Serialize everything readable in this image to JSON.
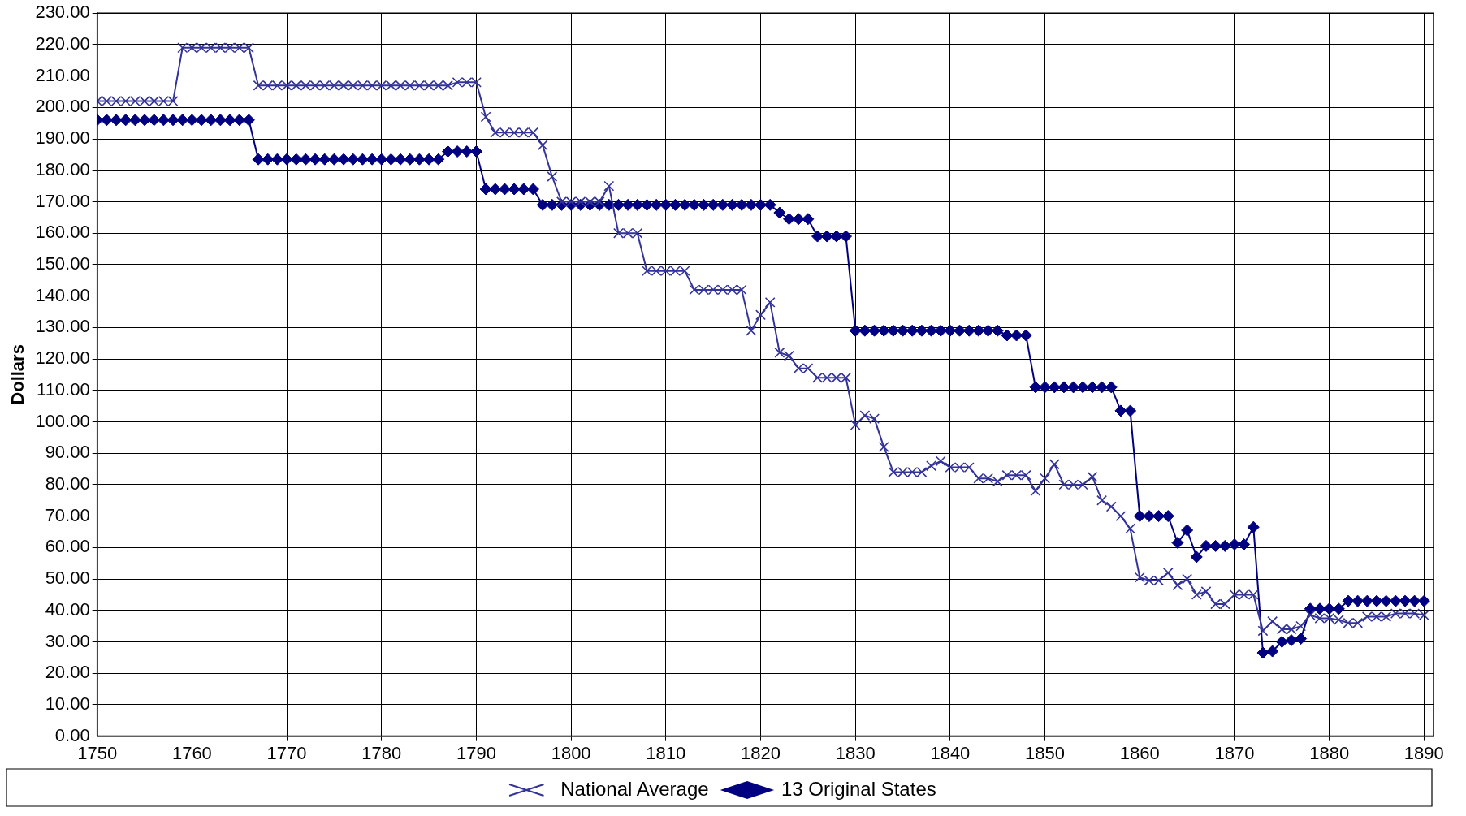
{
  "chart_data": {
    "type": "line",
    "ylabel": "Dollars",
    "x": [
      1750,
      1751,
      1752,
      1753,
      1754,
      1755,
      1756,
      1757,
      1758,
      1759,
      1760,
      1761,
      1762,
      1763,
      1764,
      1765,
      1766,
      1767,
      1768,
      1769,
      1770,
      1771,
      1772,
      1773,
      1774,
      1775,
      1776,
      1777,
      1778,
      1779,
      1780,
      1781,
      1782,
      1783,
      1784,
      1785,
      1786,
      1787,
      1788,
      1789,
      1790,
      1791,
      1792,
      1793,
      1794,
      1795,
      1796,
      1797,
      1798,
      1799,
      1800,
      1801,
      1802,
      1803,
      1804,
      1805,
      1806,
      1807,
      1808,
      1809,
      1810,
      1811,
      1812,
      1813,
      1814,
      1815,
      1816,
      1817,
      1818,
      1819,
      1820,
      1821,
      1822,
      1823,
      1824,
      1825,
      1826,
      1827,
      1828,
      1829,
      1830,
      1831,
      1832,
      1833,
      1834,
      1835,
      1836,
      1837,
      1838,
      1839,
      1840,
      1841,
      1842,
      1843,
      1844,
      1845,
      1846,
      1847,
      1848,
      1849,
      1850,
      1851,
      1852,
      1853,
      1854,
      1855,
      1856,
      1857,
      1858,
      1859,
      1860,
      1861,
      1862,
      1863,
      1864,
      1865,
      1866,
      1867,
      1868,
      1869,
      1870,
      1871,
      1872,
      1873,
      1874,
      1875,
      1876,
      1877,
      1878,
      1879,
      1880,
      1881,
      1882,
      1883,
      1884,
      1885,
      1886,
      1887,
      1888,
      1889,
      1890
    ],
    "series": [
      {
        "name": "National Average",
        "color": "#333399",
        "marker": "cross",
        "values": [
          202,
          202,
          202,
          202,
          202,
          202,
          202,
          202,
          202,
          219,
          219,
          219,
          219,
          219,
          219,
          219,
          219,
          207,
          207,
          207,
          207,
          207,
          207,
          207,
          207,
          207,
          207,
          207,
          207,
          207,
          207,
          207,
          207,
          207,
          207,
          207,
          207,
          207,
          208,
          208,
          208,
          197,
          192,
          192,
          192,
          192,
          192,
          188,
          178,
          170,
          170,
          170,
          170,
          170,
          175,
          160,
          160,
          160,
          148,
          148,
          148,
          148,
          148,
          142,
          142,
          142,
          142,
          142,
          142,
          129,
          134,
          138,
          122,
          121,
          117,
          117,
          114,
          114,
          114,
          114,
          99,
          102,
          101,
          92,
          84,
          84,
          84,
          84,
          86,
          87.5,
          85.5,
          85.5,
          85.5,
          82,
          82,
          81,
          83,
          83,
          83,
          78,
          82,
          86.5,
          80,
          80,
          80,
          82.5,
          75,
          73,
          70,
          66,
          50.5,
          49.5,
          49.5,
          52,
          48,
          50,
          45,
          46,
          42,
          42,
          45,
          45,
          45,
          33.5,
          36.5,
          34,
          34,
          35,
          38.5,
          37.5,
          37.5,
          37,
          36,
          36,
          38,
          38,
          38,
          39,
          39,
          39,
          38.5
        ]
      },
      {
        "name": "13 Original States",
        "color": "#000080",
        "marker": "diamond",
        "values": [
          196,
          196,
          196,
          196,
          196,
          196,
          196,
          196,
          196,
          196,
          196,
          196,
          196,
          196,
          196,
          196,
          196,
          183.5,
          183.5,
          183.5,
          183.5,
          183.5,
          183.5,
          183.5,
          183.5,
          183.5,
          183.5,
          183.5,
          183.5,
          183.5,
          183.5,
          183.5,
          183.5,
          183.5,
          183.5,
          183.5,
          183.5,
          186,
          186,
          186,
          186,
          174,
          174,
          174,
          174,
          174,
          174,
          169,
          169,
          169,
          169,
          169,
          169,
          169,
          169,
          169,
          169,
          169,
          169,
          169,
          169,
          169,
          169,
          169,
          169,
          169,
          169,
          169,
          169,
          169,
          169,
          169,
          166.5,
          164.5,
          164.5,
          164.5,
          159,
          159,
          159,
          159,
          129,
          129,
          129,
          129,
          129,
          129,
          129,
          129,
          129,
          129,
          129,
          129,
          129,
          129,
          129,
          129,
          127.5,
          127.5,
          127.5,
          111,
          111,
          111,
          111,
          111,
          111,
          111,
          111,
          111,
          103.5,
          103.5,
          70,
          70,
          70,
          70,
          61.5,
          65.5,
          57,
          60.5,
          60.5,
          60.5,
          61,
          61,
          66.5,
          26.5,
          27,
          30,
          30.5,
          31,
          40.5,
          40.5,
          40.5,
          40.5,
          43,
          43,
          43,
          43,
          43,
          43,
          43,
          43,
          43
        ]
      }
    ],
    "xlim": [
      1750,
      1891
    ],
    "xticks": [
      1750,
      1760,
      1770,
      1780,
      1790,
      1800,
      1810,
      1820,
      1830,
      1840,
      1850,
      1860,
      1870,
      1880,
      1890
    ],
    "ylim": [
      0,
      230
    ],
    "yticks": [
      {
        "value": 0,
        "label": "0.00"
      },
      {
        "value": 10,
        "label": "10.00"
      },
      {
        "value": 20,
        "label": "20.00"
      },
      {
        "value": 30,
        "label": "30.00"
      },
      {
        "value": 40,
        "label": "40.00"
      },
      {
        "value": 50,
        "label": "50.00"
      },
      {
        "value": 60,
        "label": "60.00"
      },
      {
        "value": 70,
        "label": "70.00"
      },
      {
        "value": 80,
        "label": "80.00"
      },
      {
        "value": 90,
        "label": "90.00"
      },
      {
        "value": 100,
        "label": "100.00"
      },
      {
        "value": 110,
        "label": "110.00"
      },
      {
        "value": 120,
        "label": "120.00"
      },
      {
        "value": 130,
        "label": "130.00"
      },
      {
        "value": 140,
        "label": "140.00"
      },
      {
        "value": 150,
        "label": "150.00"
      },
      {
        "value": 160,
        "label": "160.00"
      },
      {
        "value": 170,
        "label": "170.00"
      },
      {
        "value": 180,
        "label": "180.00"
      },
      {
        "value": 190,
        "label": "190.00"
      },
      {
        "value": 200,
        "label": "200.00"
      },
      {
        "value": 210,
        "label": "210.00"
      },
      {
        "value": 220,
        "label": "220.00"
      },
      {
        "value": 230,
        "label": "230.00"
      }
    ],
    "grid": true,
    "legend": "bottom"
  }
}
